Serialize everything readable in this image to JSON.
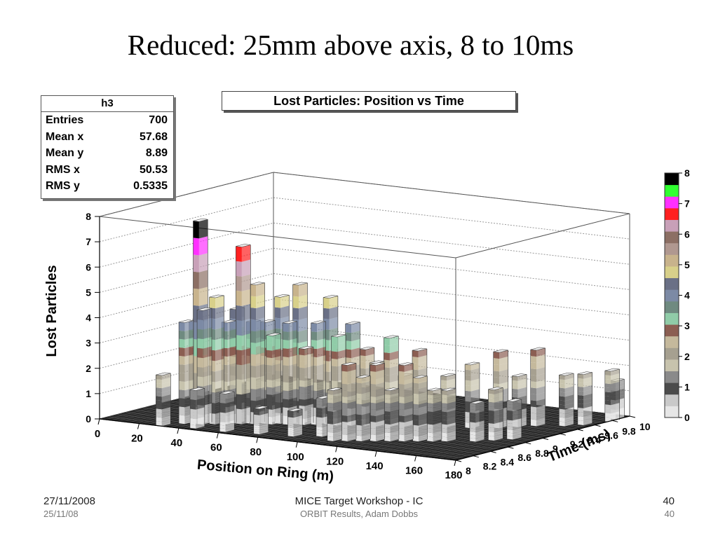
{
  "slide": {
    "title": "Reduced: 25mm above axis, 8 to 10ms",
    "footer_left": "27/11/2008",
    "footer_left_sub": "25/11/08",
    "footer_center": "MICE Target Workshop - IC",
    "footer_center_sub": "ORBIT Results, Adam Dobbs",
    "footer_right": "40",
    "footer_right_sub": "40"
  },
  "stats": {
    "name": "h3",
    "rows": [
      {
        "label": "Entries",
        "value": "700"
      },
      {
        "label": "Mean x",
        "value": "57.68"
      },
      {
        "label": "Mean y",
        "value": "8.89"
      },
      {
        "label": "RMS x",
        "value": "50.53"
      },
      {
        "label": "RMS y",
        "value": "0.5335"
      }
    ]
  },
  "chart_data": {
    "type": "lego3d",
    "title": "Lost Particles: Position vs Time",
    "xlabel": "Position on Ring (m)",
    "ylabel": "Time (ms)",
    "zlabel": "Lost Particles",
    "xlim": [
      0,
      180
    ],
    "ylim": [
      8,
      10
    ],
    "zlim": [
      0,
      8
    ],
    "x_ticks": [
      "0",
      "20",
      "40",
      "60",
      "80",
      "100",
      "120",
      "140",
      "160",
      "180"
    ],
    "y_ticks": [
      "8",
      "8.2",
      "8.4",
      "8.6",
      "8.8",
      "9",
      "9.2",
      "9.4",
      "9.6",
      "9.8",
      "10"
    ],
    "z_ticks": [
      "0",
      "1",
      "2",
      "3",
      "4",
      "5",
      "6",
      "7",
      "8"
    ],
    "palette_labels": [
      "0",
      "1",
      "2",
      "3",
      "4",
      "5",
      "6",
      "7",
      "8"
    ],
    "palette_colors": [
      "#e6e6e6",
      "#c9c9c9",
      "#4b4b4b",
      "#8a8a8a",
      "#c7c3ad",
      "#a6a090",
      "#c5b99c",
      "#8b5e52",
      "#90cca8",
      "#6f8a80",
      "#7c8aa5",
      "#6a7086",
      "#d8d08a",
      "#c8b38c",
      "#b09890",
      "#8c6f64",
      "#c8a0b8",
      "#ff2020",
      "#ff30ff",
      "#30ff30",
      "#000000"
    ],
    "points": [
      {
        "x": 35,
        "y": 8.2,
        "z": 4
      },
      {
        "x": 38,
        "y": 8.25,
        "z": 4
      },
      {
        "x": 40,
        "y": 8.25,
        "z": 8
      },
      {
        "x": 42,
        "y": 8.25,
        "z": 4.5
      },
      {
        "x": 46,
        "y": 8.3,
        "z": 5
      },
      {
        "x": 50,
        "y": 8.35,
        "z": 4
      },
      {
        "x": 52,
        "y": 8.4,
        "z": 4.5
      },
      {
        "x": 55,
        "y": 8.4,
        "z": 7
      },
      {
        "x": 58,
        "y": 8.45,
        "z": 4
      },
      {
        "x": 60,
        "y": 8.45,
        "z": 5.5
      },
      {
        "x": 63,
        "y": 8.5,
        "z": 4
      },
      {
        "x": 66,
        "y": 8.5,
        "z": 3.5
      },
      {
        "x": 68,
        "y": 8.55,
        "z": 5
      },
      {
        "x": 72,
        "y": 8.55,
        "z": 4
      },
      {
        "x": 75,
        "y": 8.6,
        "z": 5.5
      },
      {
        "x": 78,
        "y": 8.6,
        "z": 3
      },
      {
        "x": 82,
        "y": 8.65,
        "z": 4
      },
      {
        "x": 86,
        "y": 8.7,
        "z": 5
      },
      {
        "x": 90,
        "y": 8.7,
        "z": 3.5
      },
      {
        "x": 95,
        "y": 8.75,
        "z": 4
      },
      {
        "x": 100,
        "y": 8.8,
        "z": 3
      },
      {
        "x": 105,
        "y": 8.8,
        "z": 2.5
      },
      {
        "x": 110,
        "y": 8.85,
        "z": 3.5
      },
      {
        "x": 115,
        "y": 8.9,
        "z": 2
      },
      {
        "x": 120,
        "y": 8.95,
        "z": 3
      },
      {
        "x": 130,
        "y": 9.05,
        "z": 2
      },
      {
        "x": 140,
        "y": 9.1,
        "z": 2.5
      },
      {
        "x": 150,
        "y": 9.2,
        "z": 3
      },
      {
        "x": 155,
        "y": 9.3,
        "z": 2
      },
      {
        "x": 160,
        "y": 9.4,
        "z": 3
      },
      {
        "x": 170,
        "y": 9.5,
        "z": 2
      },
      {
        "x": 175,
        "y": 9.6,
        "z": 2
      },
      {
        "x": 110,
        "y": 8.2,
        "z": 2
      },
      {
        "x": 115,
        "y": 8.25,
        "z": 3
      },
      {
        "x": 120,
        "y": 8.3,
        "z": 2.5
      },
      {
        "x": 125,
        "y": 8.35,
        "z": 3
      },
      {
        "x": 130,
        "y": 8.4,
        "z": 2
      },
      {
        "x": 135,
        "y": 8.45,
        "z": 3
      },
      {
        "x": 140,
        "y": 8.5,
        "z": 2.5
      },
      {
        "x": 145,
        "y": 8.55,
        "z": 2
      },
      {
        "x": 150,
        "y": 8.6,
        "z": 2
      },
      {
        "x": 160,
        "y": 8.7,
        "z": 1.5
      },
      {
        "x": 165,
        "y": 8.8,
        "z": 2
      },
      {
        "x": 170,
        "y": 8.9,
        "z": 1.5
      },
      {
        "x": 30,
        "y": 8.05,
        "z": 2
      },
      {
        "x": 45,
        "y": 8.1,
        "z": 1.5
      },
      {
        "x": 60,
        "y": 8.1,
        "z": 1.5
      },
      {
        "x": 75,
        "y": 8.15,
        "z": 1
      },
      {
        "x": 90,
        "y": 8.2,
        "z": 1
      },
      {
        "x": 100,
        "y": 8.3,
        "z": 1.5
      },
      {
        "x": 180,
        "y": 9.8,
        "z": 2
      },
      {
        "x": 178,
        "y": 9.9,
        "z": 1.5
      }
    ]
  }
}
